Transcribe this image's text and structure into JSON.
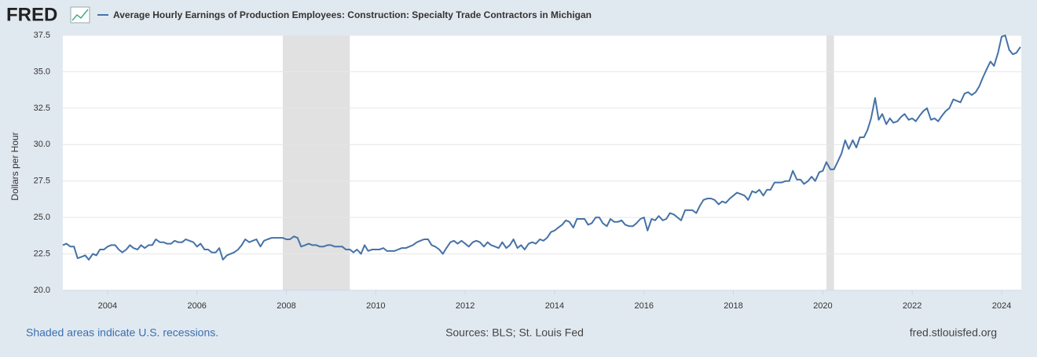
{
  "chart_data": {
    "type": "line",
    "logo": "FRED",
    "title": "Average Hourly Earnings of Production Employees: Construction: Specialty Trade Contractors in Michigan",
    "y_label": "Dollars per Hour",
    "recession_note": "Shaded areas indicate U.S. recessions.",
    "source": "Sources: BLS; St. Louis Fed",
    "site": "fred.stlouisfed.org",
    "xlim": [
      2003,
      2024.44
    ],
    "ylim": [
      20,
      37.5
    ],
    "xticks": [
      2004,
      2006,
      2008,
      2010,
      2012,
      2014,
      2016,
      2018,
      2020,
      2022,
      2024
    ],
    "yticks": [
      {
        "value": 20,
        "label": "20.0"
      },
      22.5,
      {
        "value": 25,
        "label": "25.0"
      },
      27.5,
      {
        "value": 30,
        "label": "30.0"
      },
      32.5,
      {
        "value": 35,
        "label": "35.0"
      },
      37.5
    ],
    "grid": true,
    "recessions": [
      [
        2007.92,
        2009.42
      ],
      [
        2020.08,
        2020.25
      ]
    ],
    "x": [
      2003.0,
      2003.08,
      2003.17,
      2003.25,
      2003.33,
      2003.42,
      2003.5,
      2003.58,
      2003.67,
      2003.75,
      2003.83,
      2003.92,
      2004.0,
      2004.08,
      2004.17,
      2004.25,
      2004.33,
      2004.42,
      2004.5,
      2004.58,
      2004.67,
      2004.75,
      2004.83,
      2004.92,
      2005.0,
      2005.08,
      2005.17,
      2005.25,
      2005.33,
      2005.42,
      2005.5,
      2005.58,
      2005.67,
      2005.75,
      2005.83,
      2005.92,
      2006.0,
      2006.08,
      2006.17,
      2006.25,
      2006.33,
      2006.42,
      2006.5,
      2006.58,
      2006.67,
      2006.75,
      2006.83,
      2006.92,
      2007.0,
      2007.08,
      2007.17,
      2007.25,
      2007.33,
      2007.42,
      2007.5,
      2007.58,
      2007.67,
      2007.75,
      2007.83,
      2007.92,
      2008.0,
      2008.08,
      2008.17,
      2008.25,
      2008.33,
      2008.42,
      2008.5,
      2008.58,
      2008.67,
      2008.75,
      2008.83,
      2008.92,
      2009.0,
      2009.08,
      2009.17,
      2009.25,
      2009.33,
      2009.42,
      2009.5,
      2009.58,
      2009.67,
      2009.75,
      2009.83,
      2009.92,
      2010.0,
      2010.08,
      2010.17,
      2010.25,
      2010.33,
      2010.42,
      2010.5,
      2010.58,
      2010.67,
      2010.75,
      2010.83,
      2010.92,
      2011.0,
      2011.08,
      2011.17,
      2011.25,
      2011.33,
      2011.42,
      2011.5,
      2011.58,
      2011.67,
      2011.75,
      2011.83,
      2011.92,
      2012.0,
      2012.08,
      2012.17,
      2012.25,
      2012.33,
      2012.42,
      2012.5,
      2012.58,
      2012.67,
      2012.75,
      2012.83,
      2012.92,
      2013.0,
      2013.08,
      2013.17,
      2013.25,
      2013.33,
      2013.42,
      2013.5,
      2013.58,
      2013.67,
      2013.75,
      2013.83,
      2013.92,
      2014.0,
      2014.08,
      2014.17,
      2014.25,
      2014.33,
      2014.42,
      2014.5,
      2014.58,
      2014.67,
      2014.75,
      2014.83,
      2014.92,
      2015.0,
      2015.08,
      2015.17,
      2015.25,
      2015.33,
      2015.42,
      2015.5,
      2015.58,
      2015.67,
      2015.75,
      2015.83,
      2015.92,
      2016.0,
      2016.08,
      2016.17,
      2016.25,
      2016.33,
      2016.42,
      2016.5,
      2016.58,
      2016.67,
      2016.75,
      2016.83,
      2016.92,
      2017.0,
      2017.08,
      2017.17,
      2017.25,
      2017.33,
      2017.42,
      2017.5,
      2017.58,
      2017.67,
      2017.75,
      2017.83,
      2017.92,
      2018.0,
      2018.08,
      2018.17,
      2018.25,
      2018.33,
      2018.42,
      2018.5,
      2018.58,
      2018.67,
      2018.75,
      2018.83,
      2018.92,
      2019.0,
      2019.08,
      2019.17,
      2019.25,
      2019.33,
      2019.42,
      2019.5,
      2019.58,
      2019.67,
      2019.75,
      2019.83,
      2019.92,
      2020.0,
      2020.08,
      2020.17,
      2020.25,
      2020.33,
      2020.42,
      2020.5,
      2020.58,
      2020.67,
      2020.75,
      2020.83,
      2020.92,
      2021.0,
      2021.08,
      2021.17,
      2021.25,
      2021.33,
      2021.42,
      2021.5,
      2021.58,
      2021.67,
      2021.75,
      2021.83,
      2021.92,
      2022.0,
      2022.08,
      2022.17,
      2022.25,
      2022.33,
      2022.42,
      2022.5,
      2022.58,
      2022.67,
      2022.75,
      2022.83,
      2022.92,
      2023.0,
      2023.08,
      2023.17,
      2023.25,
      2023.33,
      2023.42,
      2023.5,
      2023.58,
      2023.67,
      2023.75,
      2023.83,
      2023.92,
      2024.0,
      2024.08,
      2024.17,
      2024.25,
      2024.33,
      2024.42
    ],
    "series": [
      {
        "name": "Average Hourly Earnings of Production Employees: Construction: Specialty Trade Contractors in Michigan",
        "color": "#4572a7",
        "values": [
          23.1,
          23.2,
          23.0,
          23.0,
          22.2,
          22.3,
          22.4,
          22.1,
          22.5,
          22.4,
          22.8,
          22.8,
          23.0,
          23.1,
          23.1,
          22.8,
          22.6,
          22.8,
          23.1,
          22.9,
          22.8,
          23.1,
          22.9,
          23.1,
          23.1,
          23.5,
          23.3,
          23.3,
          23.2,
          23.2,
          23.4,
          23.3,
          23.3,
          23.5,
          23.4,
          23.3,
          23.0,
          23.2,
          22.8,
          22.8,
          22.6,
          22.6,
          22.9,
          22.1,
          22.4,
          22.5,
          22.6,
          22.8,
          23.1,
          23.5,
          23.3,
          23.4,
          23.5,
          23.0,
          23.4,
          23.5,
          23.6,
          23.6,
          23.6,
          23.6,
          23.5,
          23.5,
          23.7,
          23.6,
          23.0,
          23.1,
          23.2,
          23.1,
          23.1,
          23.0,
          23.0,
          23.1,
          23.1,
          23.0,
          23.0,
          23.0,
          22.8,
          22.8,
          22.6,
          22.8,
          22.5,
          23.1,
          22.7,
          22.8,
          22.8,
          22.8,
          22.9,
          22.7,
          22.7,
          22.7,
          22.8,
          22.9,
          22.9,
          23.0,
          23.1,
          23.3,
          23.4,
          23.5,
          23.5,
          23.1,
          23.0,
          22.8,
          22.5,
          22.9,
          23.3,
          23.4,
          23.2,
          23.4,
          23.2,
          23.0,
          23.3,
          23.4,
          23.3,
          23.0,
          23.3,
          23.1,
          23.0,
          22.9,
          23.3,
          22.9,
          23.1,
          23.5,
          22.9,
          23.1,
          22.8,
          23.2,
          23.3,
          23.2,
          23.5,
          23.4,
          23.6,
          24.0,
          24.1,
          24.3,
          24.5,
          24.8,
          24.7,
          24.3,
          24.9,
          24.9,
          24.9,
          24.5,
          24.6,
          25.0,
          25.0,
          24.6,
          24.4,
          24.9,
          24.7,
          24.7,
          24.8,
          24.5,
          24.4,
          24.4,
          24.6,
          24.9,
          25.0,
          24.1,
          24.9,
          24.8,
          25.1,
          24.8,
          24.9,
          25.3,
          25.2,
          25.0,
          24.8,
          25.5,
          25.5,
          25.5,
          25.3,
          25.8,
          26.2,
          26.3,
          26.3,
          26.2,
          25.9,
          26.1,
          26.0,
          26.3,
          26.5,
          26.7,
          26.6,
          26.5,
          26.2,
          26.8,
          26.7,
          26.9,
          26.5,
          26.9,
          26.9,
          27.4,
          27.4,
          27.4,
          27.5,
          27.5,
          28.2,
          27.6,
          27.6,
          27.3,
          27.5,
          27.8,
          27.5,
          28.1,
          28.2,
          28.8,
          28.3,
          28.3,
          28.8,
          29.4,
          30.3,
          29.7,
          30.3,
          29.8,
          30.5,
          30.5,
          31.0,
          31.8,
          33.2,
          31.7,
          32.1,
          31.4,
          31.8,
          31.5,
          31.6,
          31.9,
          32.1,
          31.7,
          31.8,
          31.6,
          32.0,
          32.3,
          32.5,
          31.7,
          31.8,
          31.6,
          32.0,
          32.3,
          32.5,
          33.1,
          33.0,
          32.9,
          33.5,
          33.6,
          33.4,
          33.6,
          34.0,
          34.6,
          35.2,
          35.7,
          35.4,
          36.3,
          37.4,
          37.5,
          36.5,
          36.2,
          36.3,
          36.7
        ]
      }
    ]
  }
}
